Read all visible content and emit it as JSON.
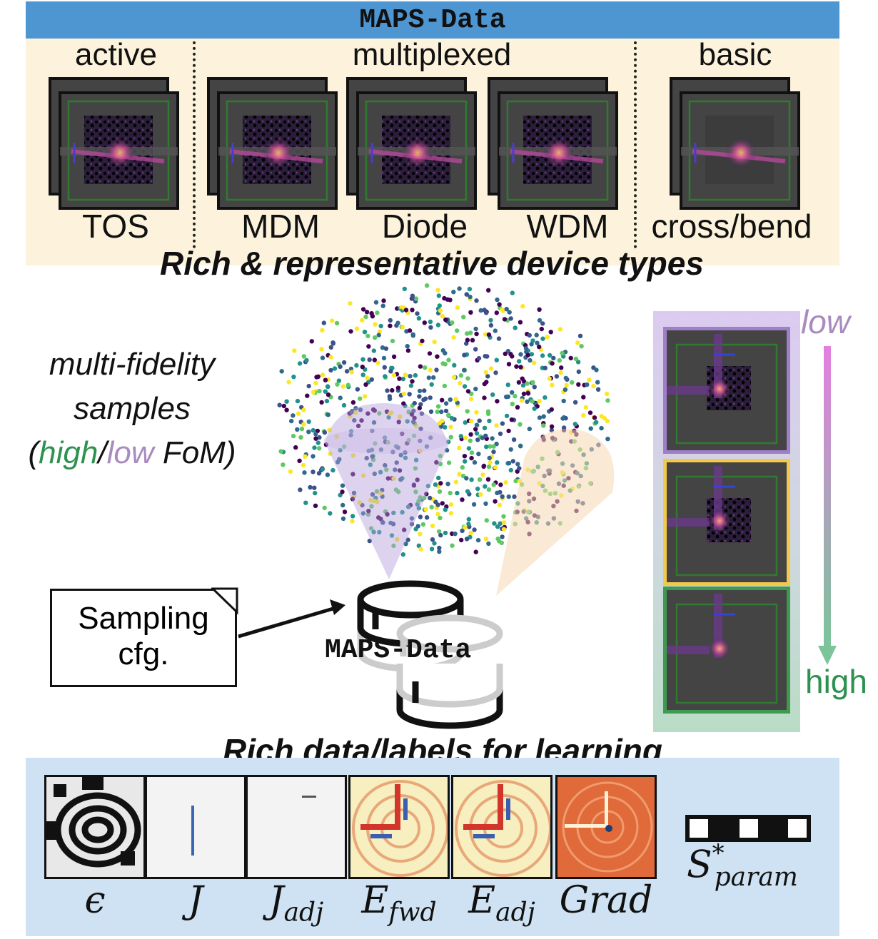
{
  "header": {
    "title": "MAPS-Data"
  },
  "categories": {
    "active": "active",
    "multiplexed": "multiplexed",
    "basic": "basic"
  },
  "devices": [
    {
      "name": "TOS"
    },
    {
      "name": "MDM"
    },
    {
      "name": "Diode"
    },
    {
      "name": "WDM"
    },
    {
      "name": "cross/bend"
    }
  ],
  "heading_device_types": "Rich & representative device types",
  "multi_fidelity": {
    "line1": "multi-fidelity",
    "line2": "samples",
    "open_paren": "(",
    "high": "high",
    "slash": "/",
    "low": "low",
    "fom": " FoM)",
    "high_color": "#2e9150",
    "low_color": "#a88bbf"
  },
  "sampling_box": {
    "line1": "Sampling",
    "line2": "cfg."
  },
  "database_label": "MAPS-Data",
  "fidelity_scale": {
    "low": "low",
    "high": "high",
    "low_border": "#a07fc9",
    "mid_border": "#f2c94c",
    "high_border": "#3f9a4f"
  },
  "heading_labels": "Rich data/labels for learning",
  "labels": [
    {
      "base": "ϵ",
      "sub": ""
    },
    {
      "base": "J",
      "sub": ""
    },
    {
      "base": "J",
      "sub": "adj"
    },
    {
      "base": "E",
      "sub": "fwd"
    },
    {
      "base": "E",
      "sub": "adj"
    },
    {
      "base": "Grad",
      "sub": ""
    }
  ],
  "sparam": {
    "base": "S",
    "sup": "*",
    "sub": "param"
  },
  "colors": {
    "title_bar": "#4e96d2",
    "top_panel": "#fdf3dc",
    "bottom_panel": "#cfe2f3"
  }
}
